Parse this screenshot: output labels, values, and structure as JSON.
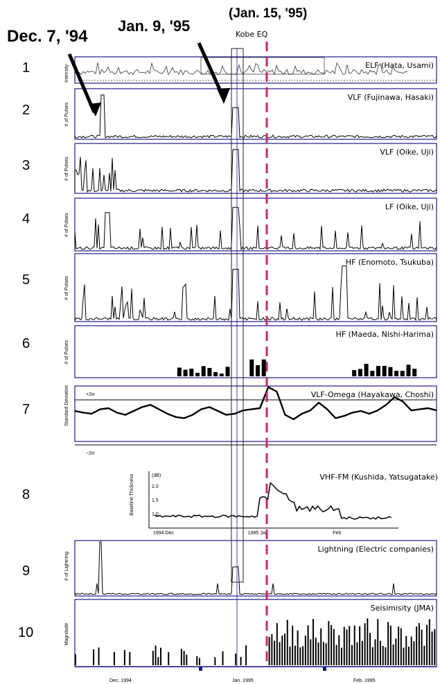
{
  "chart_data": {
    "type": "line",
    "annotations": {
      "left_date": "Dec. 7, '94",
      "mid_date": "Jan. 9, '95",
      "quake_date": "(Jan. 15, '95)",
      "quake_label": "Kobe EQ"
    },
    "xaxis": {
      "ticks": [
        "Dec. 1994",
        "Jan. 1995",
        "Feb. 1995"
      ]
    },
    "panels": [
      {
        "num": "1",
        "name": "ELF (Hata, Usami)",
        "ylabel": "Intensity",
        "kind": "line"
      },
      {
        "num": "2",
        "name": "VLF (Fujinawa, Hasaki)",
        "ylabel": "# of Pulses",
        "kind": "spike"
      },
      {
        "num": "3",
        "name": "VLF (Oike, Uji)",
        "ylabel": "# of Pulses",
        "kind": "spike"
      },
      {
        "num": "4",
        "name": "LF (Oike, Uji)",
        "ylabel": "# of Pulses",
        "kind": "spike"
      },
      {
        "num": "5",
        "name": "HF (Enomoto, Tsukuba)",
        "ylabel": "# of Pulses",
        "kind": "spike"
      },
      {
        "num": "6",
        "name": "HF (Maeda, Nishi-Harima)",
        "ylabel": "# of Pulses",
        "kind": "bars"
      },
      {
        "num": "7",
        "name": "VLF-Omega (Hayakawa, Choshi)",
        "ylabel": "Standard Deviation",
        "plus": "+2σ",
        "minus": "−2σ",
        "kind": "smooth"
      },
      {
        "num": "8",
        "name": "VHF-FM (Kushida, Yatsugatake)",
        "ylabel": "Baseline Thickness",
        "unit": "(dB)",
        "kind": "inset",
        "yticks": [
          "2.0",
          "1.5",
          "1.0"
        ],
        "xticks": [
          "1994 Dec",
          "1995 Jan",
          "Feb"
        ]
      },
      {
        "num": "9",
        "name": "Lightning (Electric companies)",
        "ylabel": "# of Lightning",
        "kind": "spike"
      },
      {
        "num": "10",
        "name": "Seisimisity (JMA)",
        "ylabel": "Magnitude",
        "kind": "bars"
      }
    ],
    "series_shape": {
      "vlf_hasaki": [
        [
          0.1,
          0.85
        ],
        [
          0.07,
          0.3
        ],
        [
          0.4,
          0.8
        ],
        [
          0.45,
          0.7
        ],
        [
          0.74,
          0.12
        ],
        [
          0.92,
          0.1
        ]
      ],
      "omega": [
        0.55,
        0.52,
        0.5,
        0.58,
        0.6,
        0.52,
        0.48,
        0.55,
        0.62,
        0.66,
        0.58,
        0.5,
        0.44,
        0.42,
        0.48,
        0.58,
        0.62,
        0.55,
        0.48,
        0.5,
        0.56,
        0.58,
        0.6,
        0.98,
        0.9,
        0.48,
        0.4,
        0.5,
        0.56,
        0.7,
        0.58,
        0.42,
        0.46,
        0.52,
        0.55,
        0.5,
        0.56,
        0.66,
        0.8,
        0.72,
        0.56,
        0.58,
        0.6,
        0.56
      ]
    }
  }
}
